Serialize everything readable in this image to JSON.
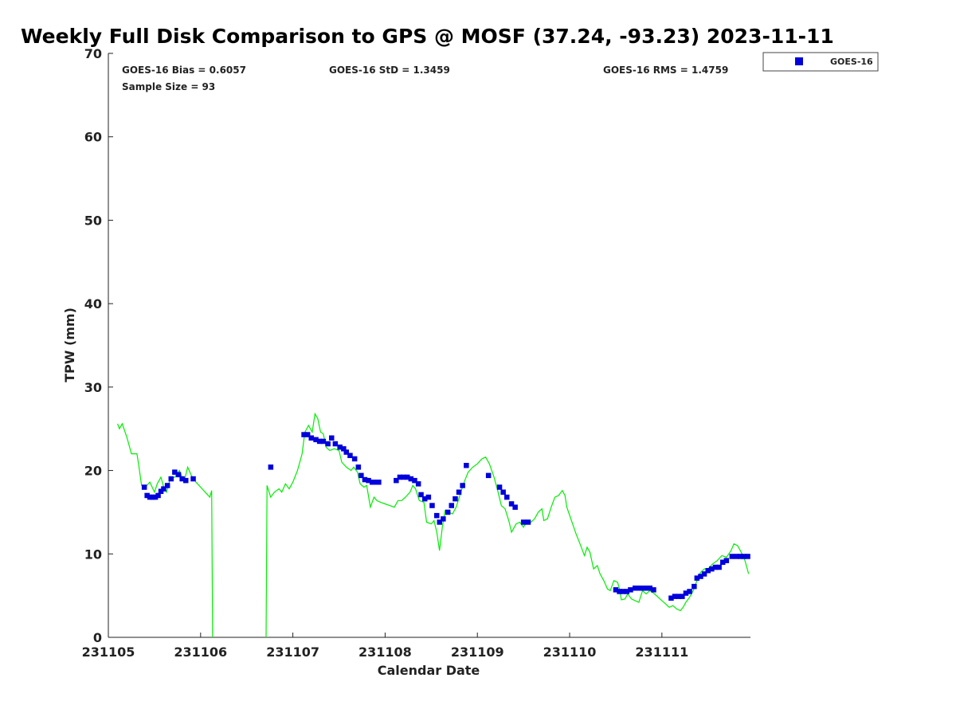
{
  "chart_data": {
    "type": "scatter",
    "title": "Weekly Full Disk Comparison to GPS @ MOSF (37.24, -93.23) 2023-11-11",
    "xlabel": "Calendar Date",
    "ylabel": "TPW (mm)",
    "xlim": [
      0,
      6.96
    ],
    "ylim": [
      0,
      70
    ],
    "x_ticks": [
      0,
      1,
      2,
      3,
      4,
      5,
      6
    ],
    "x_tick_labels": [
      "231105",
      "231106",
      "231107",
      "231108",
      "231109",
      "231110",
      "231111"
    ],
    "y_ticks": [
      0,
      10,
      20,
      30,
      40,
      50,
      60,
      70
    ],
    "y_tick_labels": [
      "0",
      "10",
      "20",
      "30",
      "40",
      "50",
      "60",
      "70"
    ],
    "stats": {
      "bias": "GOES-16 Bias = 0.6057",
      "std": "GOES-16 StD = 1.3459",
      "rms": "GOES-16 RMS = 1.4759",
      "sample": "Sample Size = 93"
    },
    "legend": {
      "label": "GOES-16",
      "position": "top-right"
    },
    "colors": {
      "goes": "#0000dd",
      "gps": "#00ee00",
      "axis": "#222222"
    },
    "series": [
      {
        "name": "GOES-16",
        "kind": "markers",
        "points": [
          [
            0.39,
            18.0
          ],
          [
            0.42,
            17.0
          ],
          [
            0.45,
            16.8
          ],
          [
            0.48,
            16.8
          ],
          [
            0.51,
            16.8
          ],
          [
            0.54,
            17.0
          ],
          [
            0.57,
            17.5
          ],
          [
            0.6,
            17.8
          ],
          [
            0.64,
            18.2
          ],
          [
            0.68,
            19.0
          ],
          [
            0.72,
            19.8
          ],
          [
            0.76,
            19.5
          ],
          [
            0.8,
            19.0
          ],
          [
            0.84,
            18.8
          ],
          [
            0.92,
            19.0
          ],
          [
            1.76,
            20.4
          ],
          [
            2.12,
            24.3
          ],
          [
            2.16,
            24.3
          ],
          [
            2.2,
            23.9
          ],
          [
            2.25,
            23.7
          ],
          [
            2.29,
            23.5
          ],
          [
            2.33,
            23.5
          ],
          [
            2.38,
            23.2
          ],
          [
            2.42,
            23.9
          ],
          [
            2.46,
            23.2
          ],
          [
            2.51,
            22.8
          ],
          [
            2.55,
            22.6
          ],
          [
            2.58,
            22.2
          ],
          [
            2.62,
            21.8
          ],
          [
            2.67,
            21.4
          ],
          [
            2.71,
            20.4
          ],
          [
            2.74,
            19.4
          ],
          [
            2.78,
            18.9
          ],
          [
            2.82,
            18.8
          ],
          [
            2.86,
            18.6
          ],
          [
            2.9,
            18.6
          ],
          [
            2.93,
            18.6
          ],
          [
            3.12,
            18.8
          ],
          [
            3.16,
            19.2
          ],
          [
            3.2,
            19.2
          ],
          [
            3.24,
            19.2
          ],
          [
            3.28,
            19.0
          ],
          [
            3.32,
            18.8
          ],
          [
            3.36,
            18.4
          ],
          [
            3.39,
            17.1
          ],
          [
            3.43,
            16.6
          ],
          [
            3.47,
            16.8
          ],
          [
            3.51,
            15.8
          ],
          [
            3.56,
            14.6
          ],
          [
            3.59,
            13.8
          ],
          [
            3.63,
            14.2
          ],
          [
            3.68,
            15.0
          ],
          [
            3.72,
            15.8
          ],
          [
            3.76,
            16.6
          ],
          [
            3.8,
            17.4
          ],
          [
            3.84,
            18.2
          ],
          [
            3.88,
            20.6
          ],
          [
            4.12,
            19.4
          ],
          [
            4.24,
            18.0
          ],
          [
            4.28,
            17.4
          ],
          [
            4.32,
            16.8
          ],
          [
            4.37,
            16.0
          ],
          [
            4.41,
            15.6
          ],
          [
            4.5,
            13.8
          ],
          [
            4.55,
            13.8
          ],
          [
            5.5,
            5.7
          ],
          [
            5.54,
            5.5
          ],
          [
            5.58,
            5.5
          ],
          [
            5.62,
            5.5
          ],
          [
            5.66,
            5.7
          ],
          [
            5.71,
            5.9
          ],
          [
            5.75,
            5.9
          ],
          [
            5.79,
            5.9
          ],
          [
            5.83,
            5.9
          ],
          [
            5.87,
            5.9
          ],
          [
            5.91,
            5.7
          ],
          [
            6.1,
            4.7
          ],
          [
            6.14,
            4.9
          ],
          [
            6.18,
            4.9
          ],
          [
            6.22,
            4.9
          ],
          [
            6.26,
            5.3
          ],
          [
            6.3,
            5.5
          ],
          [
            6.35,
            6.1
          ],
          [
            6.38,
            7.1
          ],
          [
            6.42,
            7.3
          ],
          [
            6.46,
            7.6
          ],
          [
            6.5,
            8.0
          ],
          [
            6.54,
            8.2
          ],
          [
            6.58,
            8.4
          ],
          [
            6.62,
            8.4
          ],
          [
            6.66,
            9.0
          ],
          [
            6.7,
            9.2
          ],
          [
            6.76,
            9.7
          ],
          [
            6.81,
            9.7
          ],
          [
            6.85,
            9.7
          ],
          [
            6.89,
            9.7
          ],
          [
            6.93,
            9.7
          ]
        ]
      },
      {
        "name": "GPS",
        "kind": "line",
        "segments": [
          [
            [
              0.1,
              25.6
            ],
            [
              0.12,
              25.0
            ],
            [
              0.15,
              25.6
            ],
            [
              0.2,
              24.0
            ],
            [
              0.25,
              22.0
            ],
            [
              0.31,
              22.0
            ],
            [
              0.33,
              20.6
            ],
            [
              0.36,
              18.2
            ],
            [
              0.4,
              18.0
            ],
            [
              0.45,
              18.6
            ],
            [
              0.5,
              17.4
            ],
            [
              0.53,
              18.4
            ],
            [
              0.57,
              19.2
            ],
            [
              0.6,
              18.0
            ],
            [
              0.63,
              17.4
            ],
            [
              0.67,
              19.0
            ],
            [
              0.72,
              19.2
            ],
            [
              0.77,
              20.0
            ],
            [
              0.82,
              18.6
            ],
            [
              0.86,
              20.4
            ],
            [
              0.9,
              19.4
            ],
            [
              0.95,
              18.6
            ],
            [
              1.0,
              18.0
            ],
            [
              1.05,
              17.4
            ],
            [
              1.1,
              16.8
            ],
            [
              1.12,
              17.6
            ],
            [
              1.13,
              0.0
            ]
          ],
          [
            [
              1.71,
              0.0
            ],
            [
              1.72,
              18.2
            ],
            [
              1.76,
              16.8
            ],
            [
              1.8,
              17.4
            ],
            [
              1.85,
              17.8
            ],
            [
              1.88,
              17.4
            ],
            [
              1.92,
              18.4
            ],
            [
              1.96,
              17.8
            ],
            [
              2.0,
              18.6
            ],
            [
              2.05,
              20.0
            ],
            [
              2.1,
              22.0
            ],
            [
              2.13,
              24.6
            ],
            [
              2.17,
              25.4
            ],
            [
              2.21,
              24.6
            ],
            [
              2.24,
              26.8
            ],
            [
              2.27,
              26.2
            ],
            [
              2.3,
              24.6
            ],
            [
              2.33,
              24.4
            ],
            [
              2.36,
              22.8
            ],
            [
              2.4,
              22.4
            ],
            [
              2.45,
              22.6
            ],
            [
              2.5,
              22.4
            ],
            [
              2.53,
              21.0
            ],
            [
              2.58,
              20.4
            ],
            [
              2.63,
              20.0
            ],
            [
              2.66,
              20.4
            ],
            [
              2.7,
              19.8
            ],
            [
              2.73,
              18.4
            ],
            [
              2.77,
              18.0
            ],
            [
              2.8,
              18.2
            ],
            [
              2.84,
              15.6
            ],
            [
              2.88,
              16.8
            ],
            [
              2.91,
              16.4
            ],
            [
              2.95,
              16.2
            ],
            [
              3.0,
              16.0
            ],
            [
              3.05,
              15.8
            ],
            [
              3.1,
              15.6
            ],
            [
              3.14,
              16.4
            ],
            [
              3.18,
              16.4
            ],
            [
              3.22,
              16.8
            ],
            [
              3.27,
              17.4
            ],
            [
              3.3,
              18.2
            ],
            [
              3.33,
              17.8
            ],
            [
              3.37,
              16.4
            ],
            [
              3.42,
              16.2
            ],
            [
              3.45,
              13.8
            ],
            [
              3.5,
              13.6
            ],
            [
              3.53,
              14.0
            ],
            [
              3.56,
              12.6
            ],
            [
              3.59,
              10.4
            ],
            [
              3.62,
              13.2
            ],
            [
              3.65,
              15.2
            ],
            [
              3.69,
              15.0
            ],
            [
              3.73,
              14.8
            ],
            [
              3.77,
              15.6
            ],
            [
              3.81,
              17.0
            ],
            [
              3.85,
              18.4
            ],
            [
              3.9,
              19.8
            ],
            [
              3.95,
              20.4
            ],
            [
              4.0,
              20.8
            ],
            [
              4.05,
              21.4
            ],
            [
              4.09,
              21.6
            ],
            [
              4.13,
              20.8
            ],
            [
              4.18,
              19.2
            ],
            [
              4.22,
              17.6
            ],
            [
              4.26,
              15.8
            ],
            [
              4.3,
              15.4
            ],
            [
              4.34,
              14.0
            ],
            [
              4.37,
              12.6
            ],
            [
              4.42,
              13.6
            ],
            [
              4.46,
              13.8
            ],
            [
              4.5,
              13.2
            ],
            [
              4.54,
              14.0
            ],
            [
              4.58,
              13.8
            ],
            [
              4.62,
              14.2
            ],
            [
              4.66,
              15.0
            ],
            [
              4.7,
              15.4
            ],
            [
              4.72,
              14.0
            ],
            [
              4.76,
              14.2
            ],
            [
              4.8,
              15.6
            ],
            [
              4.84,
              16.8
            ],
            [
              4.88,
              17.0
            ],
            [
              4.92,
              17.6
            ],
            [
              4.95,
              17.0
            ],
            [
              4.97,
              15.6
            ],
            [
              5.02,
              14.0
            ],
            [
              5.07,
              12.4
            ],
            [
              5.12,
              11.0
            ],
            [
              5.16,
              9.8
            ],
            [
              5.19,
              10.8
            ],
            [
              5.22,
              10.2
            ],
            [
              5.26,
              8.2
            ],
            [
              5.3,
              8.6
            ],
            [
              5.33,
              7.6
            ],
            [
              5.37,
              6.8
            ],
            [
              5.41,
              5.8
            ],
            [
              5.44,
              5.6
            ],
            [
              5.48,
              6.8
            ],
            [
              5.52,
              6.6
            ],
            [
              5.54,
              5.8
            ],
            [
              5.56,
              4.5
            ],
            [
              5.6,
              4.6
            ],
            [
              5.63,
              5.2
            ],
            [
              5.67,
              4.6
            ],
            [
              5.71,
              4.4
            ],
            [
              5.75,
              4.2
            ],
            [
              5.79,
              5.6
            ],
            [
              5.83,
              5.2
            ],
            [
              5.87,
              5.6
            ],
            [
              5.92,
              5.2
            ],
            [
              5.96,
              4.8
            ],
            [
              6.0,
              4.4
            ],
            [
              6.04,
              4.0
            ],
            [
              6.08,
              3.6
            ],
            [
              6.12,
              3.8
            ],
            [
              6.16,
              3.4
            ],
            [
              6.2,
              3.2
            ],
            [
              6.23,
              3.6
            ],
            [
              6.26,
              4.2
            ],
            [
              6.3,
              4.8
            ],
            [
              6.34,
              5.6
            ],
            [
              6.38,
              6.8
            ],
            [
              6.42,
              7.8
            ],
            [
              6.46,
              8.2
            ],
            [
              6.5,
              8.2
            ],
            [
              6.55,
              8.8
            ],
            [
              6.6,
              9.2
            ],
            [
              6.65,
              9.8
            ],
            [
              6.7,
              9.6
            ],
            [
              6.75,
              10.4
            ],
            [
              6.78,
              11.2
            ],
            [
              6.82,
              11.0
            ],
            [
              6.86,
              10.2
            ],
            [
              6.9,
              9.2
            ],
            [
              6.94,
              7.6
            ]
          ]
        ]
      }
    ]
  }
}
